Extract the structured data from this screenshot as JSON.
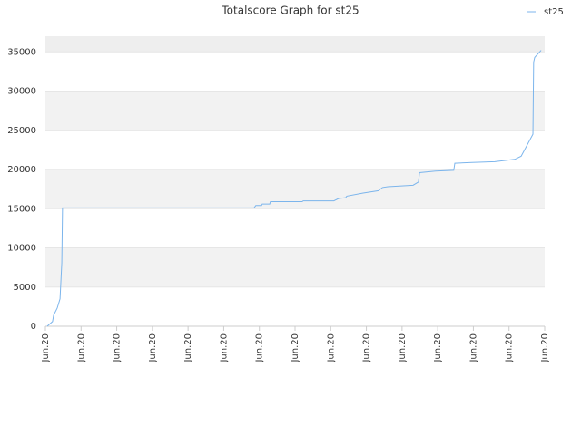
{
  "chart_data": {
    "type": "line",
    "title": "Totalscore Graph for st25",
    "x": [
      0.05,
      0.2,
      0.23,
      0.33,
      0.41,
      0.46,
      0.48,
      5.85,
      5.9,
      6.06,
      6.08,
      6.29,
      6.31,
      7.2,
      7.23,
      8.09,
      8.22,
      8.42,
      8.45,
      8.91,
      9.34,
      9.45,
      9.6,
      10.31,
      10.46,
      10.49,
      10.94,
      11.45,
      11.48,
      11.96,
      12.6,
      13.16,
      13.34,
      13.67,
      13.69,
      13.72,
      13.9
    ],
    "series": [
      {
        "name": "st25",
        "color": "#7cb5ec",
        "values": [
          0,
          600,
          1400,
          2300,
          3500,
          8100,
          15100,
          15100,
          15400,
          15400,
          15600,
          15600,
          15900,
          15900,
          16000,
          16000,
          16300,
          16400,
          16600,
          17000,
          17300,
          17700,
          17800,
          18000,
          18400,
          19600,
          19800,
          19900,
          20800,
          20900,
          21000,
          21300,
          21700,
          24500,
          33700,
          34300,
          35200
        ]
      }
    ],
    "xlim": [
      0,
      14
    ],
    "xticks": [
      {
        "value": 0,
        "label": "Jun.20"
      },
      {
        "value": 1,
        "label": "Jun.20"
      },
      {
        "value": 2,
        "label": "Jun.20"
      },
      {
        "value": 3,
        "label": "Jun.20"
      },
      {
        "value": 4,
        "label": "Jun.20"
      },
      {
        "value": 5,
        "label": "Jun.20"
      },
      {
        "value": 6,
        "label": "Jun.20"
      },
      {
        "value": 7,
        "label": "Jun.20"
      },
      {
        "value": 8,
        "label": "Jun.20"
      },
      {
        "value": 9,
        "label": "Jun.20"
      },
      {
        "value": 10,
        "label": "Jun.20"
      },
      {
        "value": 11,
        "label": "Jun.20"
      },
      {
        "value": 12,
        "label": "Jun.20"
      },
      {
        "value": 13,
        "label": "Jun.20"
      },
      {
        "value": 14,
        "label": "Jun.20"
      }
    ],
    "ylim": [
      0,
      37000
    ],
    "yticks": [
      0,
      5000,
      10000,
      15000,
      20000,
      25000,
      30000,
      35000
    ],
    "grid": true,
    "legend": "top-right"
  }
}
